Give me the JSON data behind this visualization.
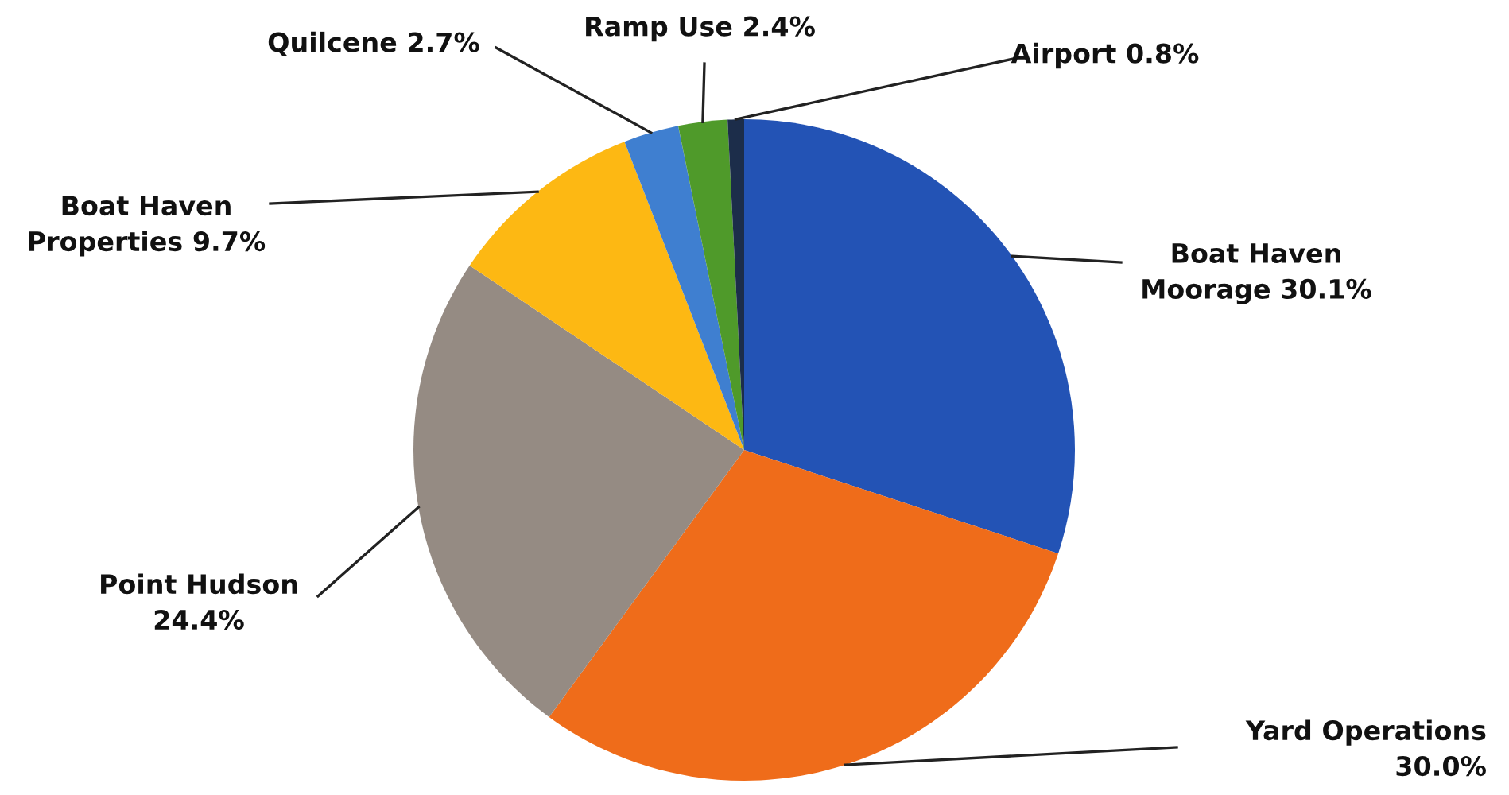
{
  "chart_data": {
    "type": "pie",
    "categories": [
      "Boat Haven Moorage",
      "Yard Operations",
      "Point Hudson",
      "Boat Haven Properties",
      "Quilcene",
      "Ramp Use",
      "Airport"
    ],
    "values": [
      30.1,
      30.0,
      24.4,
      9.7,
      2.7,
      2.4,
      0.8
    ],
    "value_labels": [
      "30.1%",
      "30.0%",
      "24.4%",
      "9.7%",
      "2.7%",
      "2.4%",
      "0.8%"
    ],
    "colors": [
      "#2353b5",
      "#ef6c1a",
      "#958b83",
      "#fdb813",
      "#3f7fd0",
      "#4f9a2a",
      "#1c2d4a"
    ]
  }
}
